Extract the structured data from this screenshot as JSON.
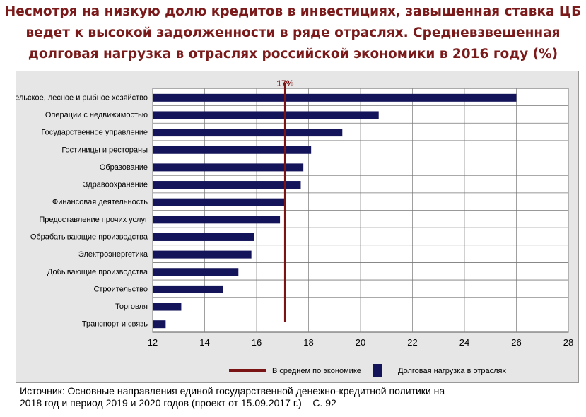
{
  "header": {
    "title_lines": [
      "Несмотря на низкую долю кредитов в инвестициях, завышенная ставка ЦБ",
      "ведет к высокой задолженности в ряде отраслях. Средневзвешенная",
      "долговая нагрузка в отраслях российской экономики в 2016 году (%)"
    ]
  },
  "source": {
    "lines": [
      "Источник: Основные направления единой государственной денежно-кредитной политики на",
      "2018 год и период 2019 и 2020 годов (проект от 15.09.2017 г.) – С. 92"
    ]
  },
  "chart_data": {
    "type": "bar",
    "orientation": "horizontal",
    "categories": [
      "Сельское, лесное и рыбное хозяйство",
      "Операции с недвижимостью",
      "Государственное управление",
      "Гостиницы и рестораны",
      "Образование",
      "Здравоохранение",
      "Финансовая деятельность",
      "Предоставление прочих услуг",
      "Обрабатывающие производства",
      "Электроэнергетика",
      "Добывающие производства",
      "Строительство",
      "Торговля",
      "Транспорт и связь"
    ],
    "series": [
      {
        "name": "Долговая нагрузка в отраслях",
        "values": [
          26.0,
          20.7,
          19.3,
          18.1,
          17.8,
          17.7,
          17.1,
          16.9,
          15.9,
          15.8,
          15.3,
          14.7,
          13.1,
          12.5
        ]
      }
    ],
    "reference_line": {
      "name": "В среднем по экономике",
      "value": 17.1,
      "label": "17%"
    },
    "xlim": [
      12,
      28
    ],
    "xticks": [
      12,
      14,
      16,
      18,
      20,
      22,
      24,
      26,
      28
    ],
    "grid": true,
    "legend_position": "bottom",
    "colors": {
      "bar": "#14145a",
      "reference": "#7a1414",
      "panel": "#e6e6e6",
      "plot": "#ffffff",
      "title": "#7a1a1a"
    }
  }
}
